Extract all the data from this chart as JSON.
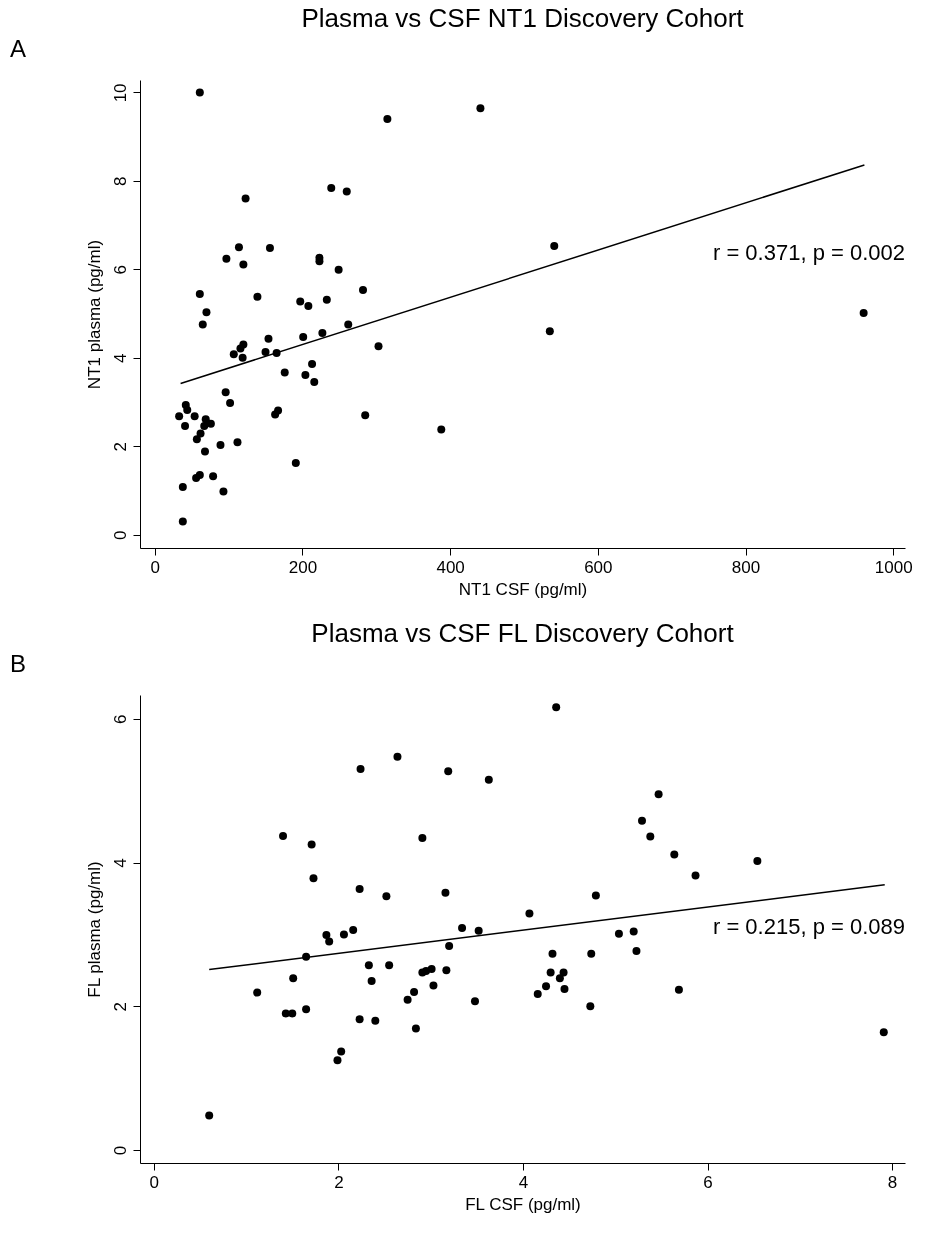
{
  "chart_data": [
    {
      "type": "scatter",
      "title": "Plasma vs CSF NT1 Discovery Cohort",
      "xlabel": "NT1 CSF (pg/ml)",
      "ylabel": "NT1 plasma (pg/ml)",
      "annotations": [
        "A",
        "r = 0.371, p = 0.002"
      ],
      "xlim": [
        -20,
        1016
      ],
      "ylim": [
        -0.3,
        10.28
      ],
      "xticks": [
        0,
        200,
        400,
        600,
        800,
        1000
      ],
      "yticks": [
        0,
        2,
        4,
        6,
        8,
        10
      ],
      "grid": false,
      "series": [
        {
          "type": "scatter",
          "marker": "circle",
          "color": "#000000",
          "x": [
            61,
            315,
            441,
            239,
            260,
            123,
            114,
            156,
            97,
            120,
            223,
            223,
            249,
            61,
            139,
            282,
            197,
            208,
            233,
            70,
            65,
            262,
            227,
            201,
            154,
            303,
            120,
            116,
            107,
            119,
            150,
            165,
            213,
            176,
            204,
            216,
            96,
            102,
            42,
            44,
            33,
            54,
            41,
            69,
            67,
            76,
            62,
            57,
            68,
            89,
            112,
            167,
            163,
            285,
            388,
            191,
            56,
            61,
            79,
            93,
            38,
            38,
            541,
            535,
            960
          ],
          "values": [
            10.0,
            9.4,
            9.64,
            7.84,
            7.76,
            7.6,
            6.5,
            6.48,
            6.24,
            6.11,
            6.26,
            6.18,
            5.99,
            5.44,
            5.38,
            5.53,
            5.27,
            5.17,
            5.31,
            5.03,
            4.75,
            4.75,
            4.56,
            4.47,
            4.43,
            4.26,
            4.3,
            4.21,
            4.08,
            4.0,
            4.13,
            4.11,
            3.86,
            3.67,
            3.61,
            3.45,
            3.22,
            2.98,
            2.93,
            2.82,
            2.68,
            2.68,
            2.46,
            2.61,
            2.46,
            2.51,
            2.29,
            2.16,
            1.88,
            2.03,
            2.09,
            2.81,
            2.72,
            2.7,
            2.38,
            1.62,
            1.28,
            1.35,
            1.32,
            0.98,
            1.08,
            0.3,
            6.53,
            4.6,
            5.01
          ]
        },
        {
          "type": "line",
          "marker": "none",
          "color": "#000000",
          "x": [
            35,
            961
          ],
          "values": [
            3.42,
            8.36
          ]
        }
      ]
    },
    {
      "type": "scatter",
      "title": "Plasma vs CSF FL Discovery Cohort",
      "xlabel": "FL CSF (pg/ml)",
      "ylabel": "FL plasma (pg/ml)",
      "annotations": [
        "B",
        "r = 0.215, p = 0.089"
      ],
      "xlim": [
        -0.15,
        8.14
      ],
      "ylim": [
        -0.18,
        6.33
      ],
      "xticks": [
        0,
        2,
        4,
        6,
        8
      ],
      "yticks": [
        0,
        2,
        4,
        6
      ],
      "grid": false,
      "series": [
        {
          "type": "scatter",
          "marker": "circle",
          "color": "#000000",
          "x": [
            0.6,
            1.12,
            1.4,
            1.71,
            1.73,
            1.43,
            1.5,
            1.51,
            1.65,
            1.65,
            1.87,
            1.9,
            2.06,
            2.16,
            2.23,
            2.24,
            2.64,
            2.52,
            2.33,
            2.36,
            2.55,
            2.23,
            2.4,
            1.99,
            2.03,
            2.75,
            2.82,
            2.84,
            2.91,
            2.91,
            2.95,
            3.01,
            3.03,
            3.17,
            3.16,
            3.19,
            3.2,
            3.34,
            3.52,
            3.48,
            3.63,
            4.07,
            4.36,
            4.32,
            5.47,
            5.29,
            5.38,
            5.64,
            6.54,
            5.87,
            4.79,
            5.04,
            5.2,
            5.23,
            4.74,
            4.3,
            4.44,
            4.4,
            4.25,
            4.16,
            4.45,
            4.73,
            5.69,
            7.91
          ],
          "values": [
            0.48,
            2.19,
            4.37,
            4.25,
            3.78,
            1.9,
            1.9,
            2.39,
            1.96,
            2.69,
            2.99,
            2.9,
            3.0,
            3.06,
            3.63,
            5.3,
            5.47,
            3.53,
            2.57,
            2.35,
            2.57,
            1.82,
            1.8,
            1.25,
            1.37,
            2.09,
            2.2,
            1.69,
            4.34,
            2.47,
            2.49,
            2.52,
            2.29,
            2.5,
            3.58,
            5.27,
            2.84,
            3.09,
            3.05,
            2.07,
            5.15,
            3.29,
            6.16,
            2.73,
            4.95,
            4.58,
            4.36,
            4.11,
            4.02,
            3.82,
            3.54,
            3.01,
            3.04,
            2.77,
            2.73,
            2.47,
            2.47,
            2.39,
            2.28,
            2.17,
            2.24,
            2.0,
            2.23,
            1.64
          ]
        },
        {
          "type": "line",
          "marker": "none",
          "color": "#000000",
          "x": [
            0.6,
            7.92
          ],
          "values": [
            2.51,
            3.69
          ]
        }
      ]
    }
  ]
}
